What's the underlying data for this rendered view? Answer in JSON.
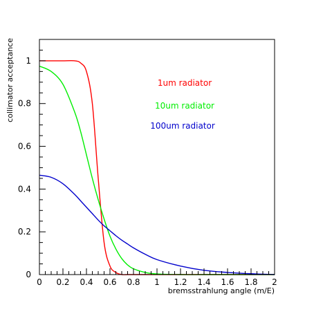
{
  "chart_data": {
    "type": "line",
    "title": "",
    "xlabel": "bremsstrahlung angle (m/E)",
    "ylabel": "collimator acceptance",
    "xlim": [
      0,
      2
    ],
    "ylim": [
      0,
      1.1
    ],
    "xticks": [
      "0",
      "0.2",
      "0.4",
      "0.6",
      "0.8",
      "1",
      "1.2",
      "1.4",
      "1.6",
      "1.8",
      "2"
    ],
    "yticks": [
      "0",
      "0.2",
      "0.4",
      "0.6",
      "0.8",
      "1"
    ],
    "legend_placement": "upper-right, inside plot",
    "grid": false,
    "x": [
      0,
      0.1,
      0.2,
      0.3,
      0.35,
      0.4,
      0.45,
      0.5,
      0.55,
      0.6,
      0.65,
      0.7,
      0.75,
      0.8,
      0.9,
      1.0,
      1.2,
      1.4,
      1.6,
      1.8,
      2.0
    ],
    "series": [
      {
        "name": "1um radiator",
        "color": "#ff0000",
        "values": [
          1.0,
          1.0,
          1.0,
          1.0,
          0.99,
          0.95,
          0.8,
          0.45,
          0.15,
          0.04,
          0.01,
          0.0,
          0.0,
          0.0,
          0.0,
          0.0,
          0.0,
          0.0,
          0.0,
          0.0,
          0.0
        ]
      },
      {
        "name": "10um radiator",
        "color": "#00ee00",
        "values": [
          0.975,
          0.95,
          0.89,
          0.76,
          0.67,
          0.56,
          0.45,
          0.35,
          0.26,
          0.18,
          0.12,
          0.075,
          0.045,
          0.027,
          0.01,
          0.003,
          0.0,
          0.0,
          0.0,
          0.0,
          0.0
        ]
      },
      {
        "name": "100um radiator",
        "color": "#0000cc",
        "values": [
          0.465,
          0.455,
          0.425,
          0.375,
          0.345,
          0.315,
          0.285,
          0.255,
          0.228,
          0.205,
          0.182,
          0.161,
          0.143,
          0.125,
          0.095,
          0.07,
          0.04,
          0.02,
          0.01,
          0.004,
          0.0
        ]
      }
    ]
  }
}
